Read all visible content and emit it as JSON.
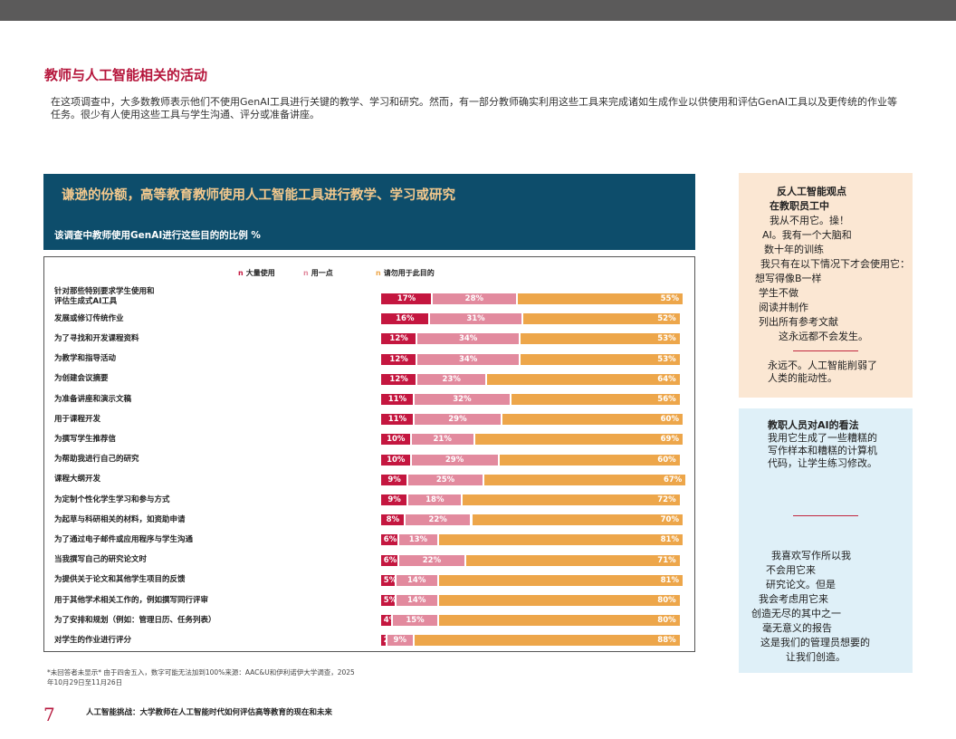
{
  "page": {
    "heading": "教师与人工智能相关的活动",
    "intro": "在这项调查中，大多数教师表示他们不使用GenAI工具进行关键的教学、学习和研究。然而，有一部分教师确实利用这些工具来完成诸如生成作业以供使用和评估GenAI工具以及更传统的作业等任务。很少有人使用这些工具与学生沟通、评分或准备讲座。",
    "page_number": "7",
    "footer_title": "人工智能挑战：大学教师在人工智能时代如何评估高等教育的现在和未来",
    "footnote": "*未回答者未显示* 由于四舍五入，数字可能无法加到100%来源：AAC&U和伊利诺伊大学调查，2025年10月29日至11月26日"
  },
  "colors": {
    "heavy": "#c4163f",
    "some": "#e28a9e",
    "never": "#eda64a",
    "header_bg": "#0d4d6b",
    "accent": "#b5153b"
  },
  "chart_data": {
    "type": "bar",
    "orientation": "horizontal-stacked",
    "title": "谦逊的份额，高等教育教师使用人工智能工具进行教学、学习或研究",
    "subtitle": "该调查中教师使用GenAI进行这些目的的比例 %",
    "legend": [
      {
        "marker": "n",
        "label": "大量使用"
      },
      {
        "marker": "n",
        "label": "用一点"
      },
      {
        "marker": "n",
        "label": "请勿用于此目的"
      }
    ],
    "categories": [
      "针对那些特别要求学生使用和\n评估生成式AI工具",
      "发展或修订传统作业",
      "为了寻找和开发课程资料",
      "为教学和指导活动",
      "为创建会议摘要",
      "为准备讲座和演示文稿",
      "用于课程开发",
      "为撰写学生推荐信",
      "为帮助我进行自己的研究",
      "课程大纲开发",
      "为定制个性化学生学习和参与方式",
      "为起草与科研相关的材料，如资助申请",
      "为了通过电子邮件或应用程序与学生沟通",
      "当我撰写自己的研究论文时",
      "为提供关于论文和其他学生项目的反馈",
      "用于其他学术相关工作的，例如撰写同行评审",
      "为了安排和规划（例如：管理日历、任务列表）",
      "对学生的作业进行评分"
    ],
    "series": [
      {
        "name": "大量使用",
        "values": [
          17,
          16,
          12,
          12,
          12,
          11,
          11,
          10,
          10,
          9,
          9,
          8,
          6,
          6,
          5,
          5,
          4,
          2
        ]
      },
      {
        "name": "用一点",
        "values": [
          28,
          31,
          34,
          34,
          23,
          32,
          29,
          21,
          29,
          25,
          18,
          22,
          13,
          22,
          14,
          14,
          15,
          9
        ]
      },
      {
        "name": "请勿用于此目的",
        "values": [
          55,
          52,
          53,
          53,
          64,
          56,
          60,
          69,
          60,
          67,
          72,
          70,
          81,
          71,
          81,
          80,
          80,
          88
        ]
      }
    ],
    "value_suffix": "%"
  },
  "sidebar": {
    "anti_lines": [
      "反人工智能观点",
      "在教职员工中",
      "我从不用它。操！",
      "AI。我有一个大脑和",
      "数十年的训练",
      "我只有在以下情况下才会使用它：",
      "想写得像B一样",
      "学生不做",
      "阅读并制作",
      "列出所有参考文献",
      "这永远都不会发生。"
    ],
    "anti_quote2_lines": [
      "永远不。人工智能削弱了",
      "人类的能动性。"
    ],
    "faculty_lines": [
      "教职人员对AI的看法",
      "我用它生成了一些糟糕的",
      "写作样本和糟糕的计算机",
      "代码，让学生练习修改。"
    ],
    "faculty_quote2_lines": [
      "我喜欢写作所以我",
      "不会用它来",
      "研究论文。但是",
      "我会考虑用它来",
      "创造无尽的其中之一",
      "毫无意义的报告",
      "这是我们的管理员想要的",
      "让我们创造。"
    ]
  }
}
